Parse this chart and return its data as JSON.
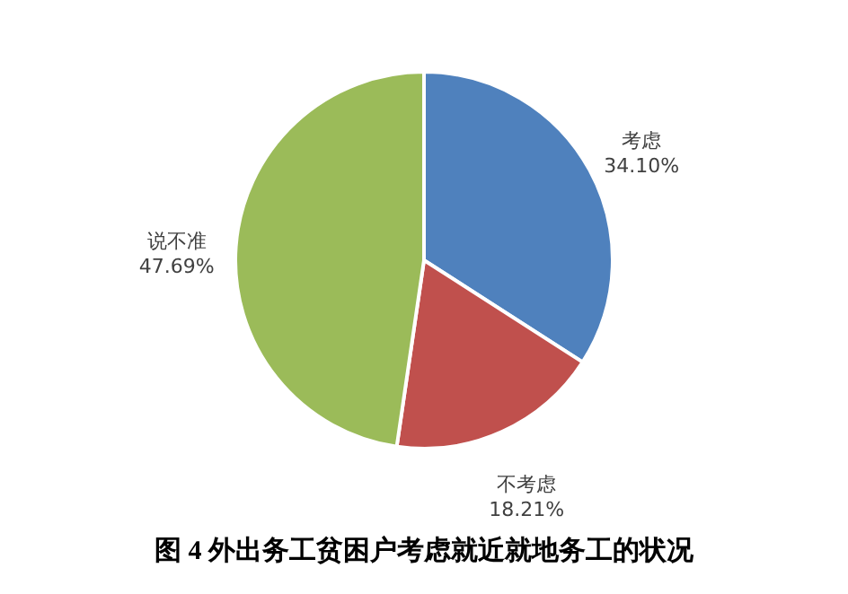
{
  "chart_data": {
    "type": "pie",
    "title": "图 4 外出务工贫困户考虑就近就地务工的状况",
    "categories": [
      "考虑",
      "不考虑",
      "说不准"
    ],
    "values": [
      34.1,
      18.21,
      47.69
    ],
    "colors": [
      "#4f81bd",
      "#c0504d",
      "#9bbb59"
    ],
    "value_labels": [
      "34.10%",
      "18.21%",
      "47.69%"
    ],
    "legend": false
  }
}
